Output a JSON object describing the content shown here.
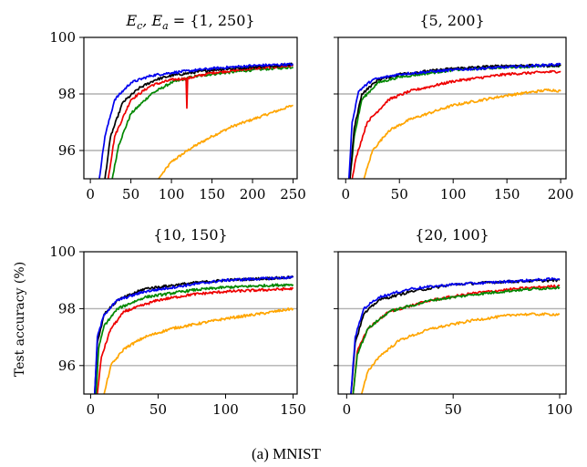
{
  "figure": {
    "caption": "(a) MNIST",
    "ylabel": "Test accuracy (%)"
  },
  "series_colors": {
    "blue": "#0000ee",
    "black": "#000000",
    "red": "#ee0000",
    "green": "#008800",
    "orange": "#ffa500"
  },
  "chart_data": [
    {
      "type": "line",
      "title": "E_c, E_a = {1, 250}",
      "title_display": [
        "E",
        "c",
        ", E",
        "a",
        " = {1, 250}"
      ],
      "xlim": [
        -8,
        255
      ],
      "ylim": [
        95,
        100
      ],
      "xticks": [
        0,
        50,
        100,
        150,
        200,
        250
      ],
      "yticks": [
        96,
        98,
        100
      ],
      "grid_y": [
        96,
        98
      ],
      "ytick_labels_shown": true,
      "series": [
        {
          "color": "orange",
          "anchors": [
            [
              84,
              95.0
            ],
            [
              100,
              95.6
            ],
            [
              125,
              96.1
            ],
            [
              150,
              96.5
            ],
            [
              175,
              96.85
            ],
            [
              200,
              97.1
            ],
            [
              225,
              97.35
            ],
            [
              250,
              97.6
            ]
          ]
        },
        {
          "color": "green",
          "anchors": [
            [
              27,
              95.0
            ],
            [
              35,
              96.2
            ],
            [
              50,
              97.3
            ],
            [
              75,
              98.0
            ],
            [
              100,
              98.4
            ],
            [
              125,
              98.6
            ],
            [
              150,
              98.7
            ],
            [
              200,
              98.85
            ],
            [
              250,
              98.95
            ]
          ]
        },
        {
          "color": "red",
          "anchors": [
            [
              22,
              95.0
            ],
            [
              30,
              96.5
            ],
            [
              50,
              97.8
            ],
            [
              75,
              98.3
            ],
            [
              100,
              98.5
            ],
            [
              118,
              98.55
            ],
            [
              119,
              97.5
            ],
            [
              120,
              98.55
            ],
            [
              150,
              98.75
            ],
            [
              200,
              98.9
            ],
            [
              250,
              99.0
            ]
          ]
        },
        {
          "color": "black",
          "anchors": [
            [
              18,
              95.0
            ],
            [
              25,
              96.5
            ],
            [
              40,
              97.7
            ],
            [
              60,
              98.2
            ],
            [
              80,
              98.5
            ],
            [
              100,
              98.65
            ],
            [
              150,
              98.85
            ],
            [
              200,
              98.95
            ],
            [
              250,
              99.05
            ]
          ]
        },
        {
          "color": "blue",
          "anchors": [
            [
              11,
              95.0
            ],
            [
              18,
              96.5
            ],
            [
              30,
              97.8
            ],
            [
              50,
              98.4
            ],
            [
              75,
              98.65
            ],
            [
              100,
              98.75
            ],
            [
              150,
              98.9
            ],
            [
              200,
              99.0
            ],
            [
              250,
              99.05
            ]
          ]
        }
      ]
    },
    {
      "type": "line",
      "title": "{5, 200}",
      "xlim": [
        -7,
        205
      ],
      "ylim": [
        95,
        100
      ],
      "xticks": [
        0,
        50,
        100,
        150,
        200
      ],
      "yticks": [
        96,
        98,
        100
      ],
      "grid_y": [
        96,
        98
      ],
      "ytick_labels_shown": false,
      "series": [
        {
          "color": "orange",
          "anchors": [
            [
              17,
              95.0
            ],
            [
              25,
              96.0
            ],
            [
              40,
              96.7
            ],
            [
              60,
              97.1
            ],
            [
              100,
              97.6
            ],
            [
              150,
              97.95
            ],
            [
              190,
              98.15
            ],
            [
              200,
              98.1
            ]
          ]
        },
        {
          "color": "red",
          "anchors": [
            [
              6,
              95.0
            ],
            [
              10,
              95.8
            ],
            [
              20,
              97.0
            ],
            [
              40,
              97.8
            ],
            [
              60,
              98.1
            ],
            [
              100,
              98.45
            ],
            [
              150,
              98.7
            ],
            [
              200,
              98.8
            ]
          ]
        },
        {
          "color": "green",
          "anchors": [
            [
              4,
              95.0
            ],
            [
              8,
              96.5
            ],
            [
              15,
              97.8
            ],
            [
              30,
              98.4
            ],
            [
              50,
              98.6
            ],
            [
              100,
              98.85
            ],
            [
              150,
              98.95
            ],
            [
              200,
              99.0
            ]
          ]
        },
        {
          "color": "black",
          "anchors": [
            [
              4,
              95.0
            ],
            [
              8,
              96.8
            ],
            [
              15,
              98.0
            ],
            [
              30,
              98.5
            ],
            [
              50,
              98.7
            ],
            [
              100,
              98.9
            ],
            [
              150,
              99.0
            ],
            [
              200,
              99.0
            ]
          ]
        },
        {
          "color": "blue",
          "anchors": [
            [
              3,
              95.0
            ],
            [
              6,
              97.0
            ],
            [
              12,
              98.1
            ],
            [
              25,
              98.5
            ],
            [
              50,
              98.7
            ],
            [
              100,
              98.85
            ],
            [
              150,
              98.95
            ],
            [
              200,
              99.05
            ]
          ]
        }
      ]
    },
    {
      "type": "line",
      "title": "{10, 150}",
      "xlim": [
        -5,
        153
      ],
      "ylim": [
        95,
        100
      ],
      "xticks": [
        0,
        50,
        100,
        150
      ],
      "yticks": [
        96,
        98,
        100
      ],
      "grid_y": [
        96,
        98
      ],
      "ytick_labels_shown": true,
      "series": [
        {
          "color": "orange",
          "anchors": [
            [
              10,
              95.0
            ],
            [
              15,
              96.0
            ],
            [
              25,
              96.6
            ],
            [
              40,
              97.0
            ],
            [
              60,
              97.3
            ],
            [
              100,
              97.65
            ],
            [
              130,
              97.85
            ],
            [
              150,
              98.0
            ]
          ]
        },
        {
          "color": "red",
          "anchors": [
            [
              5,
              95.0
            ],
            [
              8,
              96.3
            ],
            [
              15,
              97.3
            ],
            [
              25,
              97.9
            ],
            [
              50,
              98.3
            ],
            [
              75,
              98.5
            ],
            [
              100,
              98.6
            ],
            [
              150,
              98.7
            ]
          ]
        },
        {
          "color": "green",
          "anchors": [
            [
              4,
              95.0
            ],
            [
              6,
              96.6
            ],
            [
              10,
              97.4
            ],
            [
              20,
              98.0
            ],
            [
              40,
              98.4
            ],
            [
              75,
              98.65
            ],
            [
              100,
              98.75
            ],
            [
              150,
              98.85
            ]
          ]
        },
        {
          "color": "black",
          "anchors": [
            [
              3,
              95.0
            ],
            [
              5,
              96.8
            ],
            [
              10,
              97.8
            ],
            [
              20,
              98.3
            ],
            [
              40,
              98.7
            ],
            [
              75,
              98.9
            ],
            [
              100,
              99.0
            ],
            [
              150,
              99.1
            ]
          ]
        },
        {
          "color": "blue",
          "anchors": [
            [
              3,
              95.0
            ],
            [
              5,
              97.0
            ],
            [
              10,
              97.8
            ],
            [
              20,
              98.3
            ],
            [
              40,
              98.6
            ],
            [
              75,
              98.85
            ],
            [
              100,
              99.0
            ],
            [
              150,
              99.1
            ]
          ]
        }
      ]
    },
    {
      "type": "line",
      "title": "{20, 100}",
      "xlim": [
        -4,
        103
      ],
      "ylim": [
        95,
        100
      ],
      "xticks": [
        0,
        50,
        100
      ],
      "yticks": [
        96,
        98,
        100
      ],
      "grid_y": [
        96,
        98
      ],
      "ytick_labels_shown": false,
      "series": [
        {
          "color": "orange",
          "anchors": [
            [
              7,
              95.0
            ],
            [
              10,
              95.8
            ],
            [
              15,
              96.3
            ],
            [
              25,
              96.9
            ],
            [
              40,
              97.3
            ],
            [
              60,
              97.6
            ],
            [
              80,
              97.8
            ],
            [
              100,
              97.8
            ]
          ]
        },
        {
          "color": "red",
          "anchors": [
            [
              3,
              95.0
            ],
            [
              5,
              96.5
            ],
            [
              10,
              97.3
            ],
            [
              20,
              97.9
            ],
            [
              40,
              98.3
            ],
            [
              60,
              98.55
            ],
            [
              80,
              98.7
            ],
            [
              100,
              98.8
            ]
          ]
        },
        {
          "color": "green",
          "anchors": [
            [
              3,
              95.0
            ],
            [
              5,
              96.4
            ],
            [
              10,
              97.3
            ],
            [
              20,
              97.9
            ],
            [
              40,
              98.3
            ],
            [
              60,
              98.5
            ],
            [
              80,
              98.65
            ],
            [
              100,
              98.75
            ]
          ]
        },
        {
          "color": "black",
          "anchors": [
            [
              2,
              95.0
            ],
            [
              4,
              96.8
            ],
            [
              8,
              97.8
            ],
            [
              15,
              98.3
            ],
            [
              30,
              98.6
            ],
            [
              50,
              98.85
            ],
            [
              75,
              98.95
            ],
            [
              100,
              99.0
            ]
          ]
        },
        {
          "color": "blue",
          "anchors": [
            [
              2,
              95.0
            ],
            [
              4,
              97.0
            ],
            [
              8,
              98.0
            ],
            [
              15,
              98.4
            ],
            [
              30,
              98.7
            ],
            [
              50,
              98.85
            ],
            [
              75,
              98.95
            ],
            [
              100,
              99.05
            ]
          ]
        }
      ]
    }
  ]
}
